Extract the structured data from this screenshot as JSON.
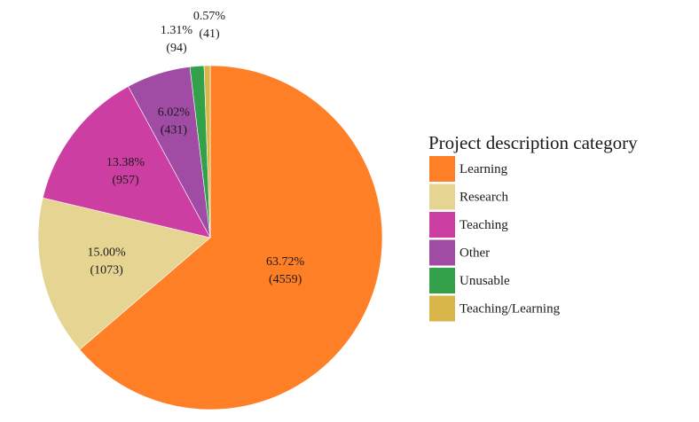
{
  "chart_data": {
    "type": "pie",
    "legend_title": "Project description category",
    "legend_position": "right",
    "slices": [
      {
        "label": "Learning",
        "value": 4559,
        "percent_label": "63.72%",
        "count_label": "(4559)",
        "color": "#FF7F27"
      },
      {
        "label": "Research",
        "value": 1073,
        "percent_label": "15.00%",
        "count_label": "(1073)",
        "color": "#E5D492"
      },
      {
        "label": "Teaching",
        "value": 957,
        "percent_label": "13.38%",
        "count_label": "(957)",
        "color": "#CC3EA1"
      },
      {
        "label": "Other",
        "value": 431,
        "percent_label": "6.02%",
        "count_label": "(431)",
        "color": "#A04CA5"
      },
      {
        "label": "Unusable",
        "value": 94,
        "percent_label": "1.31%",
        "count_label": "(94)",
        "color": "#33A04A"
      },
      {
        "label": "Teaching/Learning",
        "value": 41,
        "percent_label": "0.57%",
        "count_label": "(41)",
        "color": "#D9B64A"
      }
    ]
  }
}
